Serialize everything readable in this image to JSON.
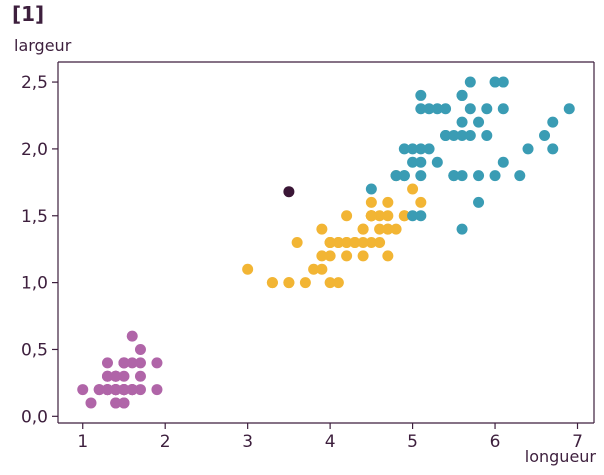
{
  "figure": {
    "panel_label": "[1]"
  },
  "chart_data": {
    "type": "scatter",
    "xlabel": "longueur",
    "ylabel": "largeur",
    "xlim": [
      0.7,
      7.2
    ],
    "ylim": [
      -0.05,
      2.65
    ],
    "xticks": [
      1,
      2,
      3,
      4,
      5,
      6,
      7
    ],
    "xtick_labels": [
      "1",
      "2",
      "3",
      "4",
      "5",
      "6",
      "7"
    ],
    "yticks": [
      0.0,
      0.5,
      1.0,
      1.5,
      2.0,
      2.5
    ],
    "ytick_labels": [
      "0,0",
      "0,5",
      "1,0",
      "1,5",
      "2,0",
      "2,5"
    ],
    "grid": false,
    "series": [
      {
        "color": "#b065a8",
        "points": [
          [
            1.4,
            0.2
          ],
          [
            1.4,
            0.2
          ],
          [
            1.3,
            0.2
          ],
          [
            1.5,
            0.2
          ],
          [
            1.4,
            0.2
          ],
          [
            1.7,
            0.4
          ],
          [
            1.4,
            0.3
          ],
          [
            1.5,
            0.2
          ],
          [
            1.4,
            0.2
          ],
          [
            1.5,
            0.1
          ],
          [
            1.5,
            0.2
          ],
          [
            1.6,
            0.2
          ],
          [
            1.4,
            0.1
          ],
          [
            1.1,
            0.1
          ],
          [
            1.2,
            0.2
          ],
          [
            1.5,
            0.4
          ],
          [
            1.3,
            0.4
          ],
          [
            1.4,
            0.3
          ],
          [
            1.7,
            0.3
          ],
          [
            1.5,
            0.3
          ],
          [
            1.7,
            0.2
          ],
          [
            1.5,
            0.4
          ],
          [
            1.0,
            0.2
          ],
          [
            1.7,
            0.5
          ],
          [
            1.9,
            0.2
          ],
          [
            1.6,
            0.2
          ],
          [
            1.6,
            0.4
          ],
          [
            1.5,
            0.2
          ],
          [
            1.4,
            0.2
          ],
          [
            1.6,
            0.2
          ],
          [
            1.6,
            0.2
          ],
          [
            1.5,
            0.4
          ],
          [
            1.5,
            0.1
          ],
          [
            1.4,
            0.2
          ],
          [
            1.5,
            0.2
          ],
          [
            1.2,
            0.2
          ],
          [
            1.3,
            0.2
          ],
          [
            1.4,
            0.1
          ],
          [
            1.3,
            0.2
          ],
          [
            1.5,
            0.2
          ],
          [
            1.3,
            0.3
          ],
          [
            1.3,
            0.3
          ],
          [
            1.3,
            0.2
          ],
          [
            1.6,
            0.6
          ],
          [
            1.9,
            0.4
          ],
          [
            1.4,
            0.3
          ],
          [
            1.6,
            0.2
          ],
          [
            1.4,
            0.2
          ],
          [
            1.5,
            0.2
          ],
          [
            1.4,
            0.2
          ]
        ]
      },
      {
        "color": "#f2b534",
        "points": [
          [
            4.7,
            1.4
          ],
          [
            4.5,
            1.5
          ],
          [
            4.9,
            1.5
          ],
          [
            4.0,
            1.3
          ],
          [
            4.6,
            1.5
          ],
          [
            4.5,
            1.3
          ],
          [
            4.7,
            1.6
          ],
          [
            3.3,
            1.0
          ],
          [
            4.6,
            1.3
          ],
          [
            3.9,
            1.4
          ],
          [
            3.5,
            1.0
          ],
          [
            4.2,
            1.5
          ],
          [
            4.0,
            1.0
          ],
          [
            4.7,
            1.4
          ],
          [
            3.6,
            1.3
          ],
          [
            4.4,
            1.4
          ],
          [
            4.5,
            1.5
          ],
          [
            4.1,
            1.0
          ],
          [
            4.5,
            1.5
          ],
          [
            3.9,
            1.1
          ],
          [
            4.8,
            1.8
          ],
          [
            4.0,
            1.3
          ],
          [
            4.9,
            1.5
          ],
          [
            4.7,
            1.2
          ],
          [
            4.3,
            1.3
          ],
          [
            4.4,
            1.4
          ],
          [
            4.8,
            1.4
          ],
          [
            5.0,
            1.7
          ],
          [
            4.5,
            1.5
          ],
          [
            3.5,
            1.0
          ],
          [
            3.8,
            1.1
          ],
          [
            3.7,
            1.0
          ],
          [
            3.9,
            1.2
          ],
          [
            5.1,
            1.6
          ],
          [
            4.5,
            1.5
          ],
          [
            4.5,
            1.6
          ],
          [
            4.7,
            1.5
          ],
          [
            4.4,
            1.3
          ],
          [
            4.1,
            1.3
          ],
          [
            4.0,
            1.3
          ],
          [
            4.4,
            1.2
          ],
          [
            4.6,
            1.4
          ],
          [
            4.0,
            1.2
          ],
          [
            3.3,
            1.0
          ],
          [
            4.2,
            1.3
          ],
          [
            4.2,
            1.2
          ],
          [
            4.2,
            1.3
          ],
          [
            4.3,
            1.3
          ],
          [
            3.0,
            1.1
          ],
          [
            4.1,
            1.3
          ]
        ]
      },
      {
        "color": "#3a9cb4",
        "points": [
          [
            6.0,
            2.5
          ],
          [
            5.1,
            1.9
          ],
          [
            5.9,
            2.1
          ],
          [
            5.6,
            1.8
          ],
          [
            5.8,
            2.2
          ],
          [
            6.6,
            2.1
          ],
          [
            4.5,
            1.7
          ],
          [
            6.3,
            1.8
          ],
          [
            5.8,
            1.8
          ],
          [
            6.1,
            2.5
          ],
          [
            5.1,
            2.0
          ],
          [
            5.3,
            1.9
          ],
          [
            5.5,
            2.1
          ],
          [
            5.0,
            2.0
          ],
          [
            5.1,
            2.4
          ],
          [
            5.3,
            2.3
          ],
          [
            5.5,
            1.8
          ],
          [
            6.7,
            2.2
          ],
          [
            6.9,
            2.3
          ],
          [
            5.0,
            1.5
          ],
          [
            5.7,
            2.3
          ],
          [
            4.9,
            2.0
          ],
          [
            6.7,
            2.0
          ],
          [
            4.9,
            1.8
          ],
          [
            5.7,
            2.1
          ],
          [
            6.0,
            1.8
          ],
          [
            4.8,
            1.8
          ],
          [
            4.9,
            1.8
          ],
          [
            5.6,
            2.1
          ],
          [
            5.8,
            1.6
          ],
          [
            6.1,
            1.9
          ],
          [
            6.4,
            2.0
          ],
          [
            5.6,
            2.2
          ],
          [
            5.1,
            1.5
          ],
          [
            5.6,
            1.4
          ],
          [
            6.1,
            2.3
          ],
          [
            5.6,
            2.4
          ],
          [
            5.5,
            1.8
          ],
          [
            4.8,
            1.8
          ],
          [
            5.4,
            2.1
          ],
          [
            5.6,
            2.4
          ],
          [
            5.1,
            2.3
          ],
          [
            5.9,
            2.3
          ],
          [
            5.7,
            2.5
          ],
          [
            5.2,
            2.3
          ],
          [
            5.0,
            1.9
          ],
          [
            5.2,
            2.0
          ],
          [
            5.4,
            2.3
          ],
          [
            5.1,
            1.8
          ],
          [
            5.4,
            2.1
          ]
        ]
      },
      {
        "color": "#3a1636",
        "points": [
          [
            3.5,
            1.68
          ]
        ]
      }
    ]
  }
}
